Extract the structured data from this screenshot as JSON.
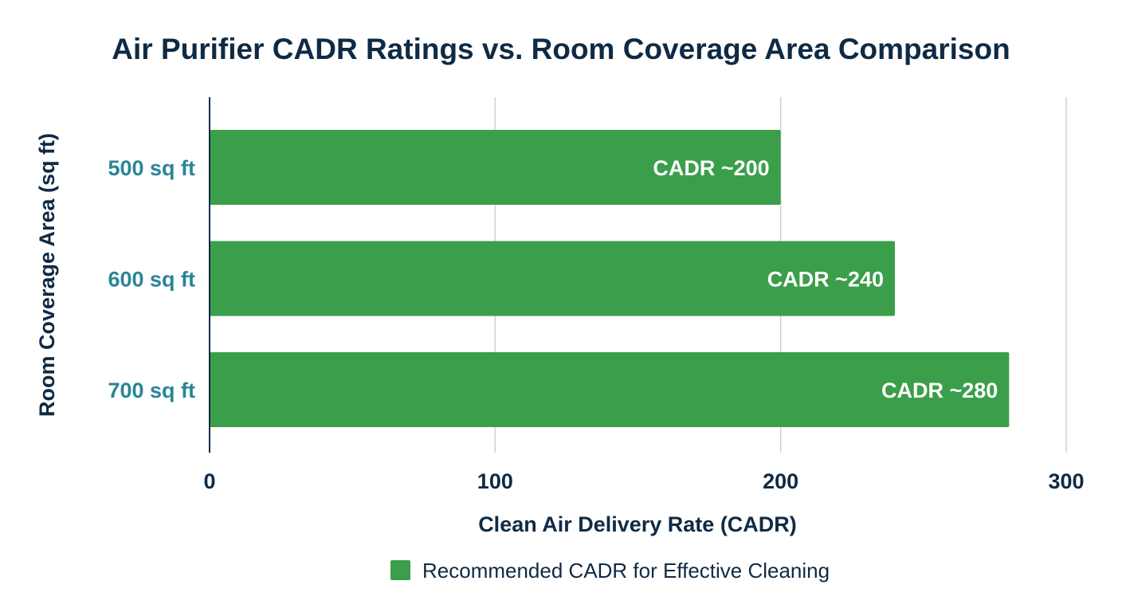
{
  "chart_data": {
    "type": "bar",
    "orientation": "horizontal",
    "title": "Air Purifier CADR Ratings vs. Room Coverage Area Comparison",
    "xlabel": "Clean Air Delivery Rate (CADR)",
    "ylabel": "Room Coverage Area (sq ft)",
    "categories": [
      "500 sq ft",
      "600 sq ft",
      "700 sq ft"
    ],
    "series": [
      {
        "name": "Recommended CADR for Effective Cleaning",
        "values": [
          200,
          240,
          280
        ],
        "data_labels": [
          "CADR ~200",
          "CADR ~240",
          "CADR ~280"
        ],
        "color": "#3a9e4a"
      }
    ],
    "xlim": [
      0,
      300
    ],
    "xticks": [
      "0",
      "100",
      "200",
      "300"
    ],
    "grid": "vertical",
    "legend": "bottom-center",
    "colors": {
      "title": "#0f2a44",
      "category_labels": "#2a8596",
      "grid": "#d0d0d0"
    }
  }
}
